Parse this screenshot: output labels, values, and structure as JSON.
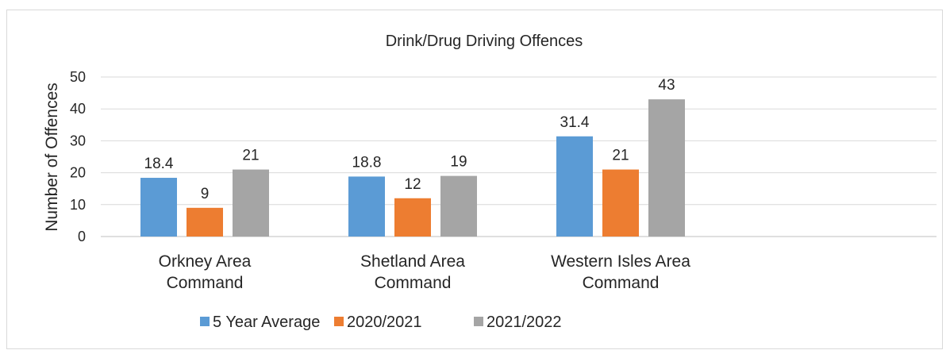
{
  "chart_data": {
    "type": "bar",
    "title": "Drink/Drug Driving Offences",
    "ylabel": "Number of Offences",
    "xlabel": "",
    "ylim": [
      0,
      50
    ],
    "yticks": [
      0,
      10,
      20,
      30,
      40,
      50
    ],
    "categories": [
      [
        "Orkney Area",
        "Command"
      ],
      [
        "Shetland Area",
        "Command"
      ],
      [
        "Western Isles Area",
        "Command"
      ]
    ],
    "series": [
      {
        "name": "5 Year Average",
        "color": "#5b9bd5",
        "values": [
          18.4,
          18.8,
          31.4
        ]
      },
      {
        "name": "2020/2021",
        "color": "#ed7d31",
        "values": [
          9,
          12,
          21
        ]
      },
      {
        "name": "2021/2022",
        "color": "#a5a5a5",
        "values": [
          21,
          19,
          43
        ]
      }
    ],
    "grid": true,
    "legend": "bottom"
  }
}
